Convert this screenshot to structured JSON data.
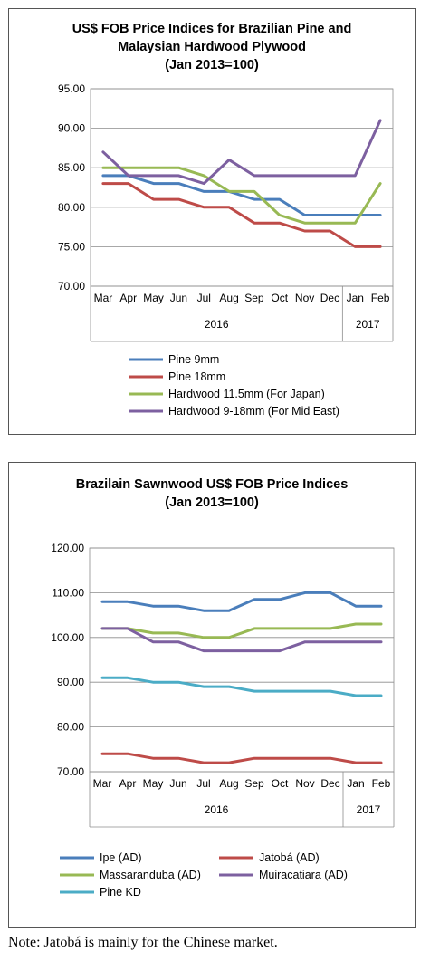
{
  "note": "Note: Jatobá is mainly for the Chinese market.",
  "chart_data": [
    {
      "type": "line",
      "title_lines": [
        "US$ FOB Price Indices for Brazilian Pine and",
        "Malaysian Hardwood Plywood",
        "(Jan 2013=100)"
      ],
      "x": [
        "Mar",
        "Apr",
        "May",
        "Jun",
        "Jul",
        "Aug",
        "Sep",
        "Oct",
        "Nov",
        "Dec",
        "Jan",
        "Feb"
      ],
      "year_groups": [
        {
          "label": "2016",
          "count": 10
        },
        {
          "label": "2017",
          "count": 2
        }
      ],
      "ylim": [
        70,
        95
      ],
      "yticks": [
        "70.00",
        "75.00",
        "80.00",
        "85.00",
        "90.00",
        "95.00"
      ],
      "grid": true,
      "legend_position": "bottom",
      "series": [
        {
          "name": "Pine 9mm",
          "color": "#4a7ebb",
          "values": [
            84,
            84,
            83,
            83,
            82,
            82,
            81,
            81,
            79,
            79,
            79,
            79
          ]
        },
        {
          "name": "Pine 18mm",
          "color": "#be4b48",
          "values": [
            83,
            83,
            81,
            81,
            80,
            80,
            78,
            78,
            77,
            77,
            75,
            75
          ]
        },
        {
          "name": "Hardwood 11.5mm (For Japan)",
          "color": "#98b954",
          "values": [
            85,
            85,
            85,
            85,
            84,
            82,
            82,
            79,
            78,
            78,
            78,
            83
          ]
        },
        {
          "name": "Hardwood 9-18mm (For Mid East)",
          "color": "#7d60a0",
          "values": [
            87,
            84,
            84,
            84,
            83,
            86,
            84,
            84,
            84,
            84,
            84,
            91
          ]
        }
      ]
    },
    {
      "type": "line",
      "title_lines": [
        "Brazilain Sawnwood US$ FOB Price Indices",
        "(Jan 2013=100)"
      ],
      "x": [
        "Mar",
        "Apr",
        "May",
        "Jun",
        "Jul",
        "Aug",
        "Sep",
        "Oct",
        "Nov",
        "Dec",
        "Jan",
        "Feb"
      ],
      "year_groups": [
        {
          "label": "2016",
          "count": 10
        },
        {
          "label": "2017",
          "count": 2
        }
      ],
      "ylim": [
        70,
        120
      ],
      "yticks": [
        "70.00",
        "80.00",
        "90.00",
        "100.00",
        "110.00",
        "120.00"
      ],
      "grid": true,
      "legend_position": "bottom",
      "series": [
        {
          "name": "Ipe (AD)",
          "color": "#4a7ebb",
          "values": [
            108,
            108,
            107,
            107,
            106,
            106,
            108.5,
            108.5,
            110,
            110,
            107,
            107
          ]
        },
        {
          "name": "Jatobá (AD)",
          "color": "#be4b48",
          "values": [
            74,
            74,
            73,
            73,
            72,
            72,
            73,
            73,
            73,
            73,
            72,
            72
          ]
        },
        {
          "name": "Massaranduba (AD)",
          "color": "#98b954",
          "values": [
            102,
            102,
            101,
            101,
            100,
            100,
            102,
            102,
            102,
            102,
            103,
            103
          ]
        },
        {
          "name": "Muiracatiara (AD)",
          "color": "#7d60a0",
          "values": [
            102,
            102,
            99,
            99,
            97,
            97,
            97,
            97,
            99,
            99,
            99,
            99
          ]
        },
        {
          "name": "Pine KD",
          "color": "#4bacc6",
          "values": [
            91,
            91,
            90,
            90,
            89,
            89,
            88,
            88,
            88,
            88,
            87,
            87
          ]
        }
      ]
    }
  ]
}
